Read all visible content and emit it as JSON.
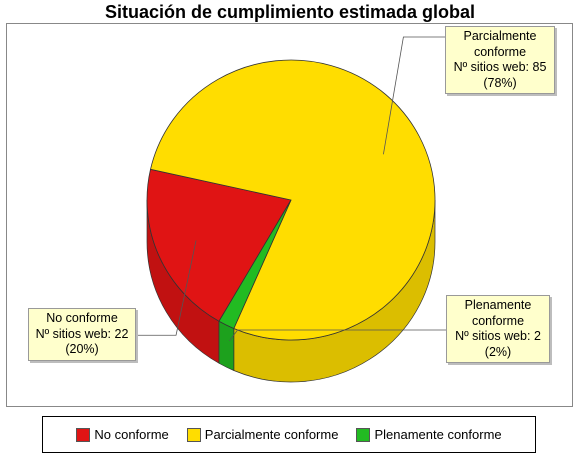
{
  "chart_data": {
    "type": "pie",
    "title": "Situación de cumplimiento estimada global",
    "series": [
      {
        "name": "No conforme",
        "value": 22,
        "percent_label": "(20%)",
        "color": "#e01414",
        "callout_lines": [
          "No conforme",
          "Nº sitios web: 22",
          "(20%)"
        ]
      },
      {
        "name": "Parcialmente conforme",
        "value": 85,
        "percent_label": "(78%)",
        "color": "#ffdd00",
        "callout_lines": [
          "Parcialmente",
          "conforme",
          "Nº sitios web: 85",
          "(78%)"
        ]
      },
      {
        "name": "Plenamente conforme",
        "value": 2,
        "percent_label": "(2%)",
        "color": "#22bb22",
        "callout_lines": [
          "Plenamente",
          "conforme",
          "Nº sitios web: 2",
          "(2%)"
        ]
      }
    ],
    "legend": {
      "position": "bottom",
      "items": [
        "No conforme",
        "Parcialmente conforme",
        "Plenamente conforme"
      ]
    }
  }
}
